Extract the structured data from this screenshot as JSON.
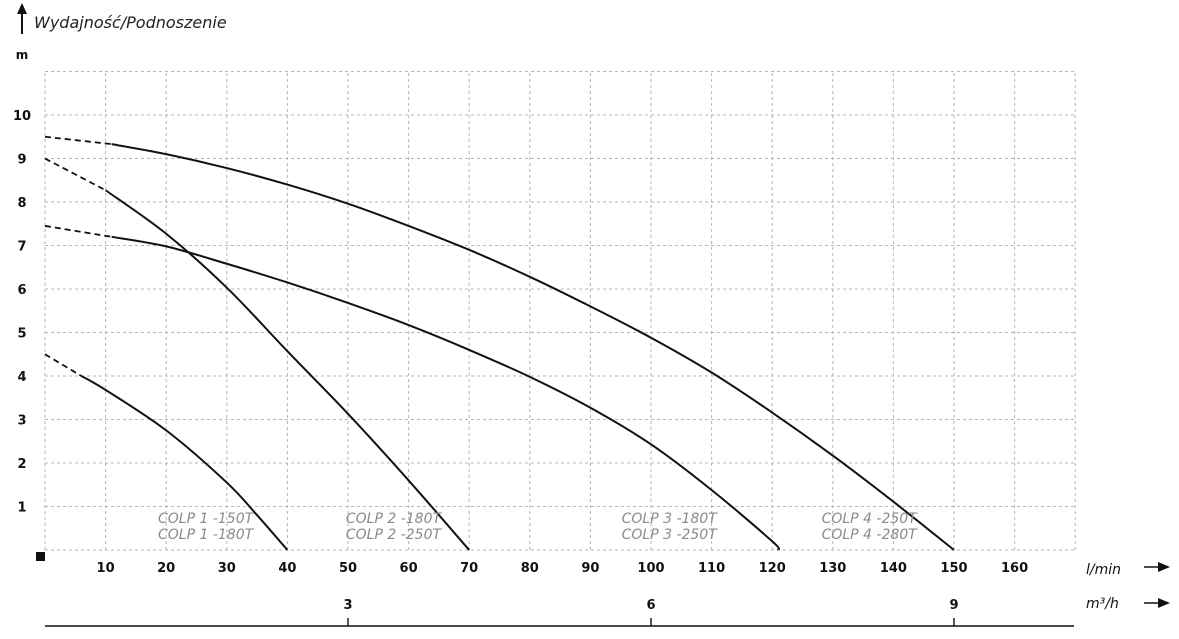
{
  "chart_data": {
    "type": "line",
    "title": "Wydajność/Podnoszenie",
    "ylabel": "m",
    "xlabel": "l/min",
    "x2label": "m³/h",
    "ylim": [
      0,
      11
    ],
    "xlim": [
      0,
      170
    ],
    "yticks": [
      "1",
      "2",
      "3",
      "4",
      "5",
      "6",
      "7",
      "8",
      "9",
      "10"
    ],
    "xticks": [
      "10",
      "20",
      "30",
      "40",
      "50",
      "60",
      "70",
      "80",
      "90",
      "100",
      "110",
      "120",
      "130",
      "140",
      "150",
      "160"
    ],
    "x2ticks": [
      {
        "label": "3",
        "at": 50
      },
      {
        "label": "6",
        "at": 100
      },
      {
        "label": "9",
        "at": 150
      }
    ],
    "grid": true,
    "series": [
      {
        "name": "COLP 1 -150T / COLP 1 -180T",
        "dashed_to_x": 6,
        "points": [
          [
            0,
            4.5
          ],
          [
            6,
            4.0
          ],
          [
            10,
            3.68
          ],
          [
            20,
            2.75
          ],
          [
            30,
            1.55
          ],
          [
            35,
            0.8
          ],
          [
            40,
            0
          ]
        ]
      },
      {
        "name": "COLP 2 -180T / COLP 2 -250T",
        "dashed_to_x": 10,
        "points": [
          [
            0,
            9.0
          ],
          [
            10,
            8.27
          ],
          [
            20,
            7.27
          ],
          [
            30,
            6.03
          ],
          [
            40,
            4.57
          ],
          [
            50,
            3.13
          ],
          [
            60,
            1.6
          ],
          [
            70,
            0
          ]
        ]
      },
      {
        "name": "COLP 3 -180T / COLP 3 -250T",
        "dashed_to_x": 11,
        "points": [
          [
            0,
            7.45
          ],
          [
            11,
            7.2
          ],
          [
            20,
            6.98
          ],
          [
            30,
            6.58
          ],
          [
            40,
            6.15
          ],
          [
            50,
            5.68
          ],
          [
            60,
            5.17
          ],
          [
            70,
            4.6
          ],
          [
            80,
            3.98
          ],
          [
            90,
            3.27
          ],
          [
            100,
            2.43
          ],
          [
            110,
            1.38
          ],
          [
            120,
            0.2
          ],
          [
            121,
            0
          ]
        ]
      },
      {
        "name": "COLP 4 -250T / COLP 4 -280T",
        "dashed_to_x": 11,
        "points": [
          [
            0,
            9.5
          ],
          [
            11,
            9.33
          ],
          [
            20,
            9.1
          ],
          [
            30,
            8.78
          ],
          [
            40,
            8.4
          ],
          [
            50,
            7.96
          ],
          [
            60,
            7.45
          ],
          [
            70,
            6.9
          ],
          [
            80,
            6.28
          ],
          [
            90,
            5.6
          ],
          [
            100,
            4.88
          ],
          [
            110,
            4.08
          ],
          [
            120,
            3.16
          ],
          [
            130,
            2.17
          ],
          [
            140,
            1.11
          ],
          [
            150,
            0
          ]
        ]
      }
    ],
    "annotations": [
      {
        "lines": [
          "COLP 1 -150T",
          "COLP 1 -180T"
        ],
        "x": 26.5
      },
      {
        "lines": [
          "COLP 2 -180T",
          "COLP 2 -250T"
        ],
        "x": 57.5
      },
      {
        "lines": [
          "COLP 3 -180T",
          "COLP 3 -250T"
        ],
        "x": 103
      },
      {
        "lines": [
          "COLP 4 -250T",
          "COLP 4 -280T"
        ],
        "x": 136
      }
    ]
  }
}
